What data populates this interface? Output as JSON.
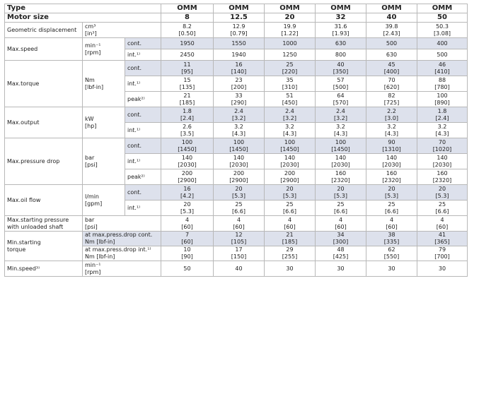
{
  "header": {
    "type_label": "Type",
    "size_label": "Motor size",
    "models": [
      "OMM",
      "OMM",
      "OMM",
      "OMM",
      "OMM",
      "OMM"
    ],
    "sizes": [
      "8",
      "12.5",
      "20",
      "32",
      "40",
      "50"
    ]
  },
  "groups": [
    {
      "param": [
        "Geometric displacement"
      ],
      "unit": [
        "cm³",
        "[in³]"
      ],
      "rows": [
        {
          "mode": "",
          "shaded": false,
          "cells": [
            [
              "8.2",
              "[0.50]"
            ],
            [
              "12.9",
              "[0.79]"
            ],
            [
              "19.9",
              "[1.22]"
            ],
            [
              "31.6",
              "[1.93]"
            ],
            [
              "39.8",
              "[2.43]"
            ],
            [
              "50.3",
              "[3.08]"
            ]
          ]
        }
      ]
    },
    {
      "param": [
        "Max.speed"
      ],
      "unit": [
        "min⁻¹",
        "[rpm]"
      ],
      "rows": [
        {
          "mode": "cont.",
          "shaded": true,
          "cells": [
            [
              "1950"
            ],
            [
              "1550"
            ],
            [
              "1000"
            ],
            [
              "630"
            ],
            [
              "500"
            ],
            [
              "400"
            ]
          ]
        },
        {
          "mode": "int.¹⁾",
          "shaded": false,
          "cells": [
            [
              "2450"
            ],
            [
              "1940"
            ],
            [
              "1250"
            ],
            [
              "800"
            ],
            [
              "630"
            ],
            [
              "500"
            ]
          ]
        }
      ]
    },
    {
      "param": [
        "Max.torque"
      ],
      "unit": [
        "Nm",
        "[lbf-in]"
      ],
      "rows": [
        {
          "mode": "cont.",
          "shaded": true,
          "cells": [
            [
              "11",
              "[95]"
            ],
            [
              "16",
              "[140]"
            ],
            [
              "25",
              "[220]"
            ],
            [
              "40",
              "[350]"
            ],
            [
              "45",
              "[400]"
            ],
            [
              "46",
              "[410]"
            ]
          ]
        },
        {
          "mode": "int.¹⁾",
          "shaded": false,
          "cells": [
            [
              "15",
              "[135]"
            ],
            [
              "23",
              "[200]"
            ],
            [
              "35",
              "[310]"
            ],
            [
              "57",
              "[500]"
            ],
            [
              "70",
              "[620]"
            ],
            [
              "88",
              "[780]"
            ]
          ]
        },
        {
          "mode": "peak²⁾",
          "shaded": false,
          "cells": [
            [
              "21",
              "[185]"
            ],
            [
              "33",
              "[290]"
            ],
            [
              "51",
              "[450]"
            ],
            [
              "64",
              "[570]"
            ],
            [
              "82",
              "[725]"
            ],
            [
              "100",
              "[890]"
            ]
          ]
        }
      ]
    },
    {
      "param": [
        "Max.output"
      ],
      "unit": [
        "kW",
        "[hp]"
      ],
      "rows": [
        {
          "mode": "cont.",
          "shaded": true,
          "cells": [
            [
              "1.8",
              "[2.4]"
            ],
            [
              "2.4",
              "[3.2]"
            ],
            [
              "2.4",
              "[3.2]"
            ],
            [
              "2.4",
              "[3.2]"
            ],
            [
              "2.2",
              "[3.0]"
            ],
            [
              "1.8",
              "[2.4]"
            ]
          ]
        },
        {
          "mode": "int.¹⁾",
          "shaded": false,
          "cells": [
            [
              "2.6",
              "[3.5]"
            ],
            [
              "3.2",
              "[4.3]"
            ],
            [
              "3.2",
              "[4.3]"
            ],
            [
              "3.2",
              "[4.3]"
            ],
            [
              "3.2",
              "[4.3]"
            ],
            [
              "3.2",
              "[4.3]"
            ]
          ]
        }
      ]
    },
    {
      "param": [
        "Max.pressure drop"
      ],
      "unit": [
        "bar",
        "[psi]"
      ],
      "rows": [
        {
          "mode": "cont.",
          "shaded": true,
          "cells": [
            [
              "100",
              "[1450]"
            ],
            [
              "100",
              "[1450]"
            ],
            [
              "100",
              "[1450]"
            ],
            [
              "100",
              "[1450]"
            ],
            [
              "90",
              "[1310]"
            ],
            [
              "70",
              "[1020]"
            ]
          ]
        },
        {
          "mode": "int.¹⁾",
          "shaded": false,
          "cells": [
            [
              "140",
              "[2030]"
            ],
            [
              "140",
              "[2030]"
            ],
            [
              "140",
              "[2030]"
            ],
            [
              "140",
              "[2030]"
            ],
            [
              "140",
              "[2030]"
            ],
            [
              "140",
              "[2030]"
            ]
          ]
        },
        {
          "mode": "peak²⁾",
          "shaded": false,
          "cells": [
            [
              "200",
              "[2900]"
            ],
            [
              "200",
              "[2900]"
            ],
            [
              "200",
              "[2900]"
            ],
            [
              "160",
              "[2320]"
            ],
            [
              "160",
              "[2320]"
            ],
            [
              "160",
              "[2320]"
            ]
          ]
        }
      ]
    },
    {
      "param": [
        "Max.oil flow"
      ],
      "unit": [
        "l/min",
        "[gpm]"
      ],
      "rows": [
        {
          "mode": "cont.",
          "shaded": true,
          "cells": [
            [
              "16",
              "[4.2]"
            ],
            [
              "20",
              "[5.3]"
            ],
            [
              "20",
              "[5.3]"
            ],
            [
              "20",
              "[5.3]"
            ],
            [
              "20",
              "[5.3]"
            ],
            [
              "20",
              "[5.3]"
            ]
          ]
        },
        {
          "mode": "int.¹⁾",
          "shaded": false,
          "cells": [
            [
              "20",
              "[5.3]"
            ],
            [
              "25",
              "[6.6]"
            ],
            [
              "25",
              "[6.6]"
            ],
            [
              "25",
              "[6.6]"
            ],
            [
              "25",
              "[6.6]"
            ],
            [
              "25",
              "[6.6]"
            ]
          ]
        }
      ]
    },
    {
      "param": [
        "Max.starting pressure",
        "with unloaded shaft"
      ],
      "unit": [
        "bar",
        "[psi]"
      ],
      "rows": [
        {
          "mode": "",
          "shaded": false,
          "cells": [
            [
              "4",
              "[60]"
            ],
            [
              "4",
              "[60]"
            ],
            [
              "4",
              "[60]"
            ],
            [
              "4",
              "[60]"
            ],
            [
              "4",
              "[60]"
            ],
            [
              "4",
              "[60]"
            ]
          ]
        }
      ]
    },
    {
      "param": [
        "Min.starting",
        "torque"
      ],
      "unit": [],
      "rows": [
        {
          "mode": "",
          "combo": [
            "at max.press.drop cont.",
            "Nm [lbf-in]"
          ],
          "shaded": true,
          "cells": [
            [
              "7",
              "[60]"
            ],
            [
              "12",
              "[105]"
            ],
            [
              "21",
              "[185]"
            ],
            [
              "34",
              "[300]"
            ],
            [
              "38",
              "[335]"
            ],
            [
              "41",
              "[365]"
            ]
          ]
        },
        {
          "mode": "",
          "combo": [
            "at max.press.drop int.¹⁾",
            "Nm [lbf-in]"
          ],
          "shaded": false,
          "cells": [
            [
              "10",
              "[90]"
            ],
            [
              "17",
              "[150]"
            ],
            [
              "29",
              "[255]"
            ],
            [
              "48",
              "[425]"
            ],
            [
              "62",
              "[550]"
            ],
            [
              "79",
              "[700]"
            ]
          ]
        }
      ]
    },
    {
      "param": [
        "Min.speed³⁾"
      ],
      "unit": [
        "min⁻¹",
        "[rpm]"
      ],
      "rows": [
        {
          "mode": "",
          "shaded": false,
          "cells": [
            [
              "50"
            ],
            [
              "40"
            ],
            [
              "30"
            ],
            [
              "30"
            ],
            [
              "30"
            ],
            [
              "30"
            ]
          ]
        }
      ]
    }
  ]
}
